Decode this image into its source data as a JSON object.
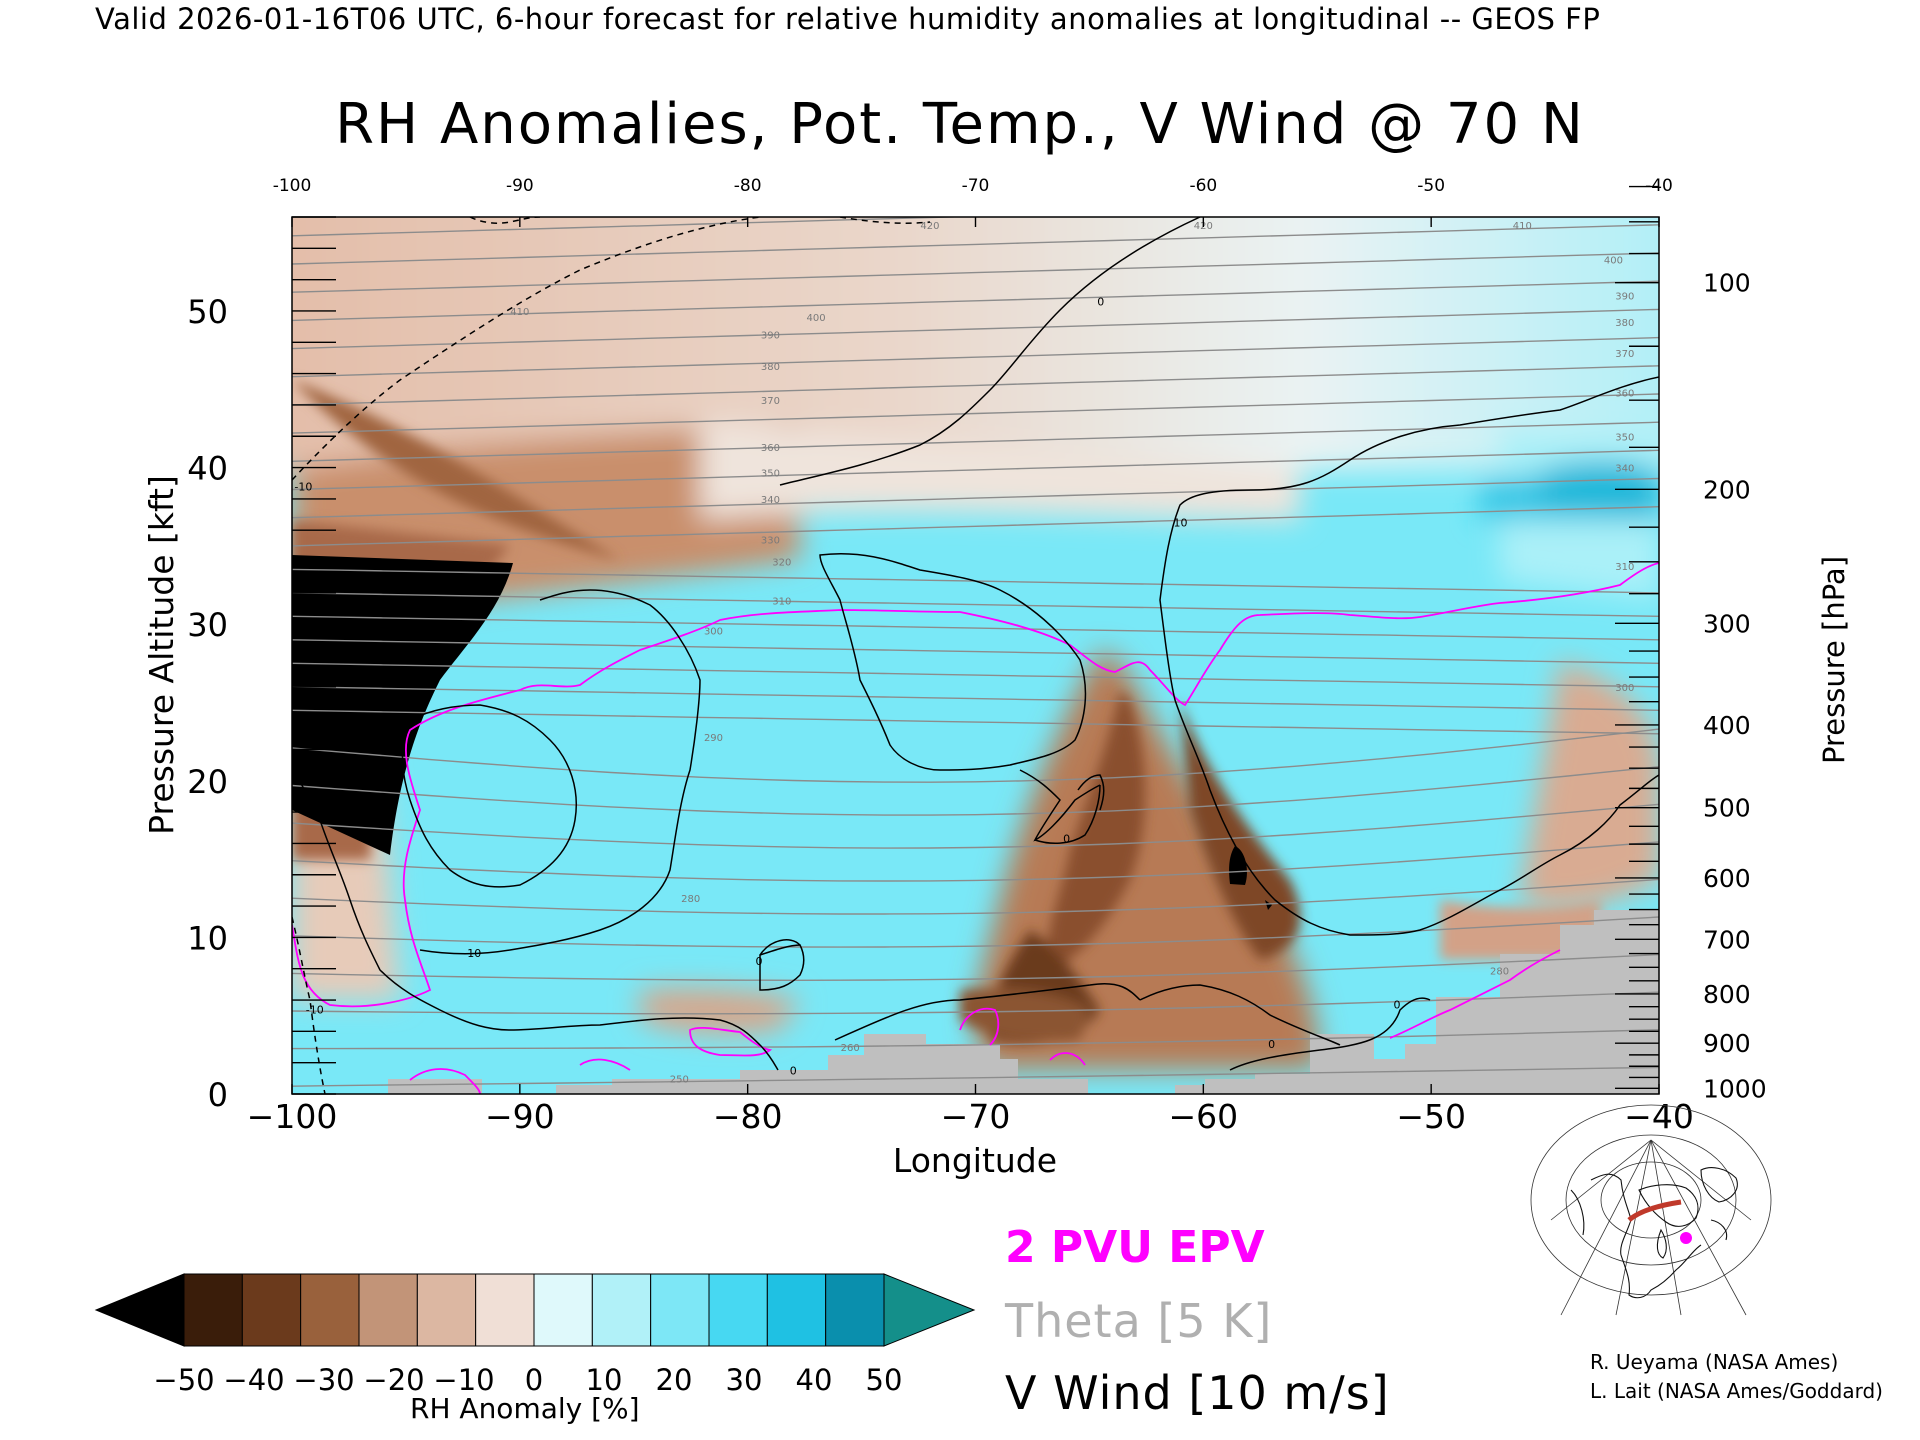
{
  "banner": "Valid 2026-01-16T06 UTC, 6-hour forecast for relative humidity anomalies at longitudinal -- GEOS FP",
  "chart_data": {
    "type": "heatmap",
    "title": "RH Anomalies, Pot. Temp., V Wind @ 70 N",
    "xlabel": "Longitude",
    "ylabel": "Pressure Altitude [kft]",
    "y2label": "Pressure [hPa]",
    "xlim": [
      -100,
      -40
    ],
    "ylim": [
      0,
      56
    ],
    "x_ticks": [
      -100,
      -90,
      -80,
      -70,
      -60,
      -50,
      -40
    ],
    "x_tick_labels": [
      "−100",
      "−90",
      "−80",
      "−70",
      "−60",
      "−50",
      "−40"
    ],
    "x_top_tick_labels": [
      "-100",
      "-90",
      "-80",
      "-70",
      "-60",
      "-50",
      "-40"
    ],
    "y_ticks": [
      0,
      10,
      20,
      30,
      40,
      50
    ],
    "y_tick_labels": [
      "0",
      "10",
      "20",
      "30",
      "40",
      "50"
    ],
    "pressure_ticks": [
      1000,
      900,
      800,
      700,
      600,
      500,
      400,
      300,
      200,
      100
    ],
    "colorbar": {
      "label": "RH Anomaly [%]",
      "ticks": [
        "−50",
        "−40",
        "−30",
        "−20",
        "−10",
        "0",
        "10",
        "20",
        "30",
        "40",
        "50"
      ],
      "colors": [
        "#3a1d0a",
        "#6b3a1c",
        "#99613c",
        "#c29478",
        "#dcb7a2",
        "#f0dfd6",
        "#dff9fb",
        "#b1f1f8",
        "#7de7f6",
        "#47d8f2",
        "#1fc1e3",
        "#0a8fad"
      ],
      "under_color": "#000000",
      "over_color": "#148f8a"
    },
    "theta_labels": [
      {
        "lon": -79,
        "alt": 48.5,
        "text": "390"
      },
      {
        "lon": -79,
        "alt": 46.5,
        "text": "380"
      },
      {
        "lon": -79,
        "alt": 44.3,
        "text": "370"
      },
      {
        "lon": -79,
        "alt": 41.3,
        "text": "360"
      },
      {
        "lon": -79,
        "alt": 39.7,
        "text": "350"
      },
      {
        "lon": -79,
        "alt": 38.0,
        "text": "340"
      },
      {
        "lon": -79,
        "alt": 35.4,
        "text": "330"
      },
      {
        "lon": -78.5,
        "alt": 34.0,
        "text": "320"
      },
      {
        "lon": -78.5,
        "alt": 31.5,
        "text": "310"
      },
      {
        "lon": -81.5,
        "alt": 29.6,
        "text": "300"
      },
      {
        "lon": -81.5,
        "alt": 22.8,
        "text": "290"
      },
      {
        "lon": -82.5,
        "alt": 12.5,
        "text": "280"
      },
      {
        "lon": -75.5,
        "alt": 3.0,
        "text": "260"
      },
      {
        "lon": -83,
        "alt": 1.0,
        "text": "250"
      },
      {
        "lon": -90,
        "alt": 50.0,
        "text": "410"
      },
      {
        "lon": -77,
        "alt": 49.6,
        "text": "400"
      },
      {
        "lon": -46,
        "alt": 55.5,
        "text": "410"
      },
      {
        "lon": -42,
        "alt": 53.3,
        "text": "400"
      },
      {
        "lon": -41.5,
        "alt": 51.0,
        "text": "390"
      },
      {
        "lon": -41.5,
        "alt": 49.3,
        "text": "380"
      },
      {
        "lon": -41.5,
        "alt": 47.3,
        "text": "370"
      },
      {
        "lon": -41.5,
        "alt": 44.8,
        "text": "360"
      },
      {
        "lon": -41.5,
        "alt": 42.0,
        "text": "350"
      },
      {
        "lon": -41.5,
        "alt": 40.0,
        "text": "340"
      },
      {
        "lon": -41.5,
        "alt": 33.7,
        "text": "310"
      },
      {
        "lon": -41.5,
        "alt": 26.0,
        "text": "300"
      },
      {
        "lon": -47,
        "alt": 7.9,
        "text": "280"
      },
      {
        "lon": -60,
        "alt": 55.5,
        "text": "420"
      },
      {
        "lon": -72,
        "alt": 55.5,
        "text": "420"
      }
    ],
    "v_wind_labels": [
      {
        "lon": -99.5,
        "alt": 38.8,
        "text": "-10"
      },
      {
        "lon": -61,
        "alt": 36.5,
        "text": "10"
      },
      {
        "lon": -64.5,
        "alt": 50.6,
        "text": "0"
      },
      {
        "lon": -92,
        "alt": 9.0,
        "text": "10"
      },
      {
        "lon": -99,
        "alt": 5.4,
        "text": "-10"
      },
      {
        "lon": -79.5,
        "alt": 8.5,
        "text": "0"
      },
      {
        "lon": -66,
        "alt": 16.3,
        "text": "0"
      },
      {
        "lon": -78,
        "alt": 1.5,
        "text": "0"
      },
      {
        "lon": -51.5,
        "alt": 5.7,
        "text": "0"
      },
      {
        "lon": -57,
        "alt": 3.2,
        "text": "0"
      }
    ],
    "legend": {
      "epv": "2 PVU EPV",
      "theta": "Theta [5 K]",
      "vwind": "V Wind [10 m/s]"
    },
    "locator_map": {
      "marker_color": "#ff00ff",
      "section_color": "#c0392b"
    }
  },
  "credits": [
    "R. Ueyama (NASA Ames)",
    "L. Lait (NASA Ames/Goddard)"
  ]
}
